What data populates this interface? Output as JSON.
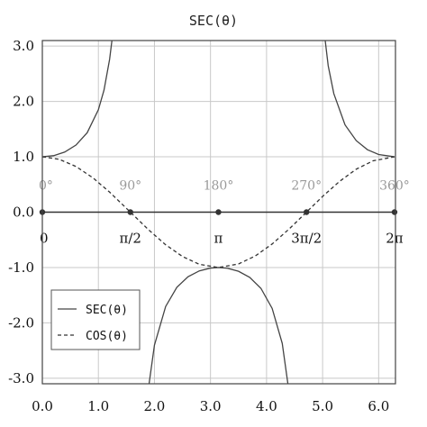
{
  "chart_data": {
    "type": "line",
    "title": "SEC(θ)",
    "xlim": [
      0.0,
      6.3
    ],
    "ylim": [
      -3.1,
      3.1
    ],
    "grid": true,
    "xticks": [
      {
        "value": 0.0,
        "label": "0.0"
      },
      {
        "value": 1.0,
        "label": "1.0"
      },
      {
        "value": 2.0,
        "label": "2.0"
      },
      {
        "value": 3.0,
        "label": "3.0"
      },
      {
        "value": 4.0,
        "label": "4.0"
      },
      {
        "value": 5.0,
        "label": "5.0"
      },
      {
        "value": 6.0,
        "label": "6.0"
      }
    ],
    "yticks": [
      {
        "value": 3.0,
        "label": "3.0"
      },
      {
        "value": 2.0,
        "label": "2.0"
      },
      {
        "value": 1.0,
        "label": "1.0"
      },
      {
        "value": 0.0,
        "label": "0.0"
      },
      {
        "value": -1.0,
        "label": "-1.0"
      },
      {
        "value": -2.0,
        "label": "-2.0"
      },
      {
        "value": -3.0,
        "label": "-3.0"
      }
    ],
    "reference_axis": {
      "y": 0.0,
      "points": [
        {
          "x": 0.0,
          "degree_label": "0°",
          "radian_label": "0"
        },
        {
          "x": 1.5708,
          "degree_label": "90°",
          "radian_label": "π/2"
        },
        {
          "x": 3.1416,
          "degree_label": "180°",
          "radian_label": "π"
        },
        {
          "x": 4.7124,
          "degree_label": "270°",
          "radian_label": "3π/2"
        },
        {
          "x": 6.2832,
          "degree_label": "360°",
          "radian_label": "2π"
        }
      ]
    },
    "series": [
      {
        "name": "SEC(θ)",
        "style": "solid",
        "x": [
          0.0,
          0.2,
          0.4,
          0.6,
          0.8,
          1.0,
          1.1,
          1.2,
          1.25,
          1.885,
          2.0,
          2.2,
          2.4,
          2.6,
          2.8,
          3.0,
          3.1416,
          3.3,
          3.5,
          3.7,
          3.9,
          4.1,
          4.28,
          4.4,
          5.03,
          5.1,
          5.2,
          5.4,
          5.6,
          5.8,
          6.0,
          6.2832
        ],
        "y": [
          1.0,
          1.02,
          1.086,
          1.212,
          1.435,
          1.851,
          2.204,
          2.76,
          3.17,
          -3.24,
          -2.403,
          -1.704,
          -1.357,
          -1.166,
          -1.061,
          -1.01,
          -1.0,
          -1.013,
          -1.068,
          -1.179,
          -1.377,
          -1.739,
          -2.37,
          -3.24,
          3.24,
          2.645,
          2.141,
          1.577,
          1.292,
          1.128,
          1.041,
          1.0
        ]
      },
      {
        "name": "COS(θ)",
        "style": "dashed",
        "x": [
          0.0,
          0.3,
          0.6,
          0.9,
          1.2,
          1.5708,
          1.9,
          2.2,
          2.5,
          2.8,
          3.1416,
          3.5,
          3.8,
          4.1,
          4.4,
          4.7124,
          5.0,
          5.3,
          5.6,
          5.9,
          6.2832
        ],
        "y": [
          1.0,
          0.955,
          0.825,
          0.622,
          0.362,
          0.0,
          -0.323,
          -0.589,
          -0.801,
          -0.942,
          -1.0,
          -0.936,
          -0.791,
          -0.575,
          -0.307,
          0.0,
          0.284,
          0.554,
          0.776,
          0.927,
          1.0
        ]
      }
    ],
    "legend": {
      "position": "bottom-left",
      "entries": [
        {
          "label": "SEC(θ)",
          "style": "solid"
        },
        {
          "label": "COS(θ)",
          "style": "dashed"
        }
      ]
    },
    "colors": {
      "sec": "#444444",
      "cos": "#333333",
      "axis_dots": "#333333",
      "degree_text": "#9a9a9a"
    }
  }
}
